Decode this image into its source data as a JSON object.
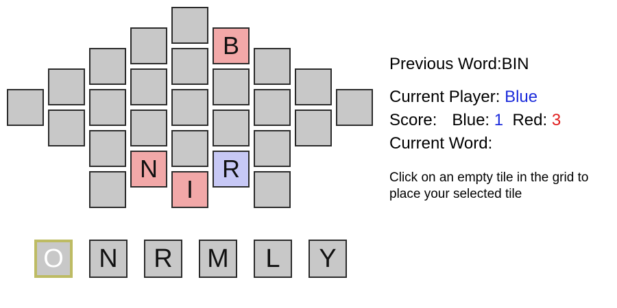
{
  "board": {
    "tiles": [
      {
        "letter": "",
        "owner": "none"
      },
      {
        "letter": "",
        "owner": "none"
      },
      {
        "letter": "",
        "owner": "none"
      },
      {
        "letter": "",
        "owner": "none"
      },
      {
        "letter": "",
        "owner": "none"
      },
      {
        "letter": "",
        "owner": "none"
      },
      {
        "letter": "",
        "owner": "none"
      },
      {
        "letter": "",
        "owner": "none"
      },
      {
        "letter": "",
        "owner": "none"
      },
      {
        "letter": "",
        "owner": "none"
      },
      {
        "letter": "N",
        "owner": "red"
      },
      {
        "letter": "",
        "owner": "none"
      },
      {
        "letter": "",
        "owner": "none"
      },
      {
        "letter": "",
        "owner": "none"
      },
      {
        "letter": "",
        "owner": "none"
      },
      {
        "letter": "I",
        "owner": "red"
      },
      {
        "letter": "B",
        "owner": "red"
      },
      {
        "letter": "",
        "owner": "none"
      },
      {
        "letter": "",
        "owner": "none"
      },
      {
        "letter": "R",
        "owner": "blue"
      },
      {
        "letter": "",
        "owner": "none"
      },
      {
        "letter": "",
        "owner": "none"
      },
      {
        "letter": "",
        "owner": "none"
      },
      {
        "letter": "",
        "owner": "none"
      },
      {
        "letter": "",
        "owner": "none"
      },
      {
        "letter": "",
        "owner": "none"
      },
      {
        "letter": "",
        "owner": "none"
      },
      {
        "letter": "",
        "owner": "none"
      },
      {
        "letter": "",
        "owner": "none"
      },
      {
        "letter": "",
        "owner": "none"
      }
    ]
  },
  "rack": {
    "tiles": [
      {
        "letter": "O",
        "selected": true
      },
      {
        "letter": "N",
        "selected": false
      },
      {
        "letter": "R",
        "selected": false
      },
      {
        "letter": "M",
        "selected": false
      },
      {
        "letter": "L",
        "selected": false
      },
      {
        "letter": "Y",
        "selected": false
      }
    ]
  },
  "info": {
    "previous_word_label": "Previous Word:",
    "previous_word": "BIN",
    "current_player_label": "Current Player: ",
    "current_player": "Blue",
    "score_label": "Score:",
    "blue_label": "Blue: ",
    "blue_score": "1",
    "red_label": "Red: ",
    "red_score": "3",
    "current_word_label": "Current Word:",
    "current_word": "",
    "instructions": "Click on an empty tile in the grid to place your selected tile"
  },
  "colors": {
    "tile": "#c8c8c8",
    "red_tile": "#f2a8a8",
    "blue_tile": "#c7c8f5",
    "selected_border": "#bdbb63",
    "blue_text": "#1b2bdb",
    "red_text": "#e01b1b"
  }
}
